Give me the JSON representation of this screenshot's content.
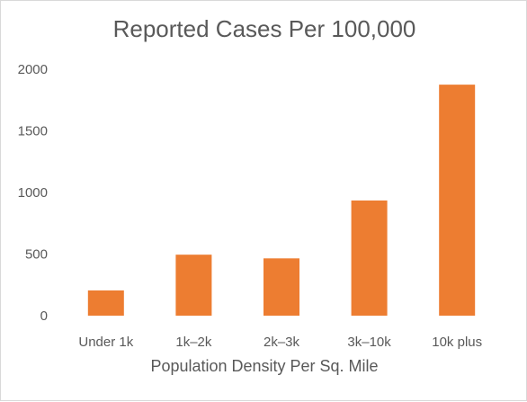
{
  "chart_data": {
    "type": "bar",
    "title": "Reported Cases Per 100,000",
    "xlabel": "Population Density Per Sq. Mile",
    "ylabel": "",
    "categories": [
      "Under 1k",
      "1k–2k",
      "2k–3k",
      "3k–10k",
      "10k plus"
    ],
    "values": [
      205,
      495,
      465,
      935,
      1875
    ],
    "ylim": [
      0,
      2000
    ],
    "yticks": [
      "0",
      "500",
      "1000",
      "1500",
      "2000"
    ],
    "grid": false,
    "legend": "none",
    "bar_color": "#ED7D31"
  }
}
